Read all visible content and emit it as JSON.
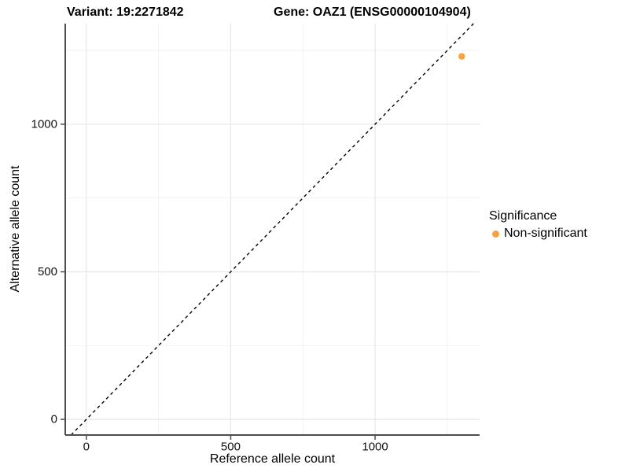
{
  "chart_data": {
    "type": "scatter",
    "title_left": "Variant: 19:2271842",
    "title_right": "Gene: OAZ1 (ENSG00000104904)",
    "xlabel": "Reference allele count",
    "ylabel": "Alternative allele count",
    "x_ticks": [
      0,
      500,
      1000
    ],
    "y_ticks": [
      0,
      500,
      1000
    ],
    "x_minor_ticks": [
      250,
      750,
      1250
    ],
    "y_minor_ticks": [
      250,
      750,
      1250
    ],
    "xlim": [
      -73,
      1362
    ],
    "ylim": [
      -53,
      1341
    ],
    "grid": true,
    "identity_line": {
      "slope": 1,
      "intercept": 0,
      "style": "dashed",
      "color": "#000000"
    },
    "points": [
      {
        "x": 1300,
        "y": 1230,
        "series": "Non-significant",
        "color": "#F9A242",
        "radius": 4.2
      }
    ],
    "legend": {
      "title": "Significance",
      "position": "right",
      "items": [
        {
          "label": "Non-significant",
          "color": "#F9A242"
        }
      ]
    },
    "colors": {
      "point": "#F9A242",
      "grid_major": "#E7E7E7",
      "grid_minor": "#F2F2F2",
      "axis_line": "#4D4D4D",
      "tick_mark": "#4D4D4D",
      "text": "#000000",
      "background": "#FFFFFF"
    }
  }
}
